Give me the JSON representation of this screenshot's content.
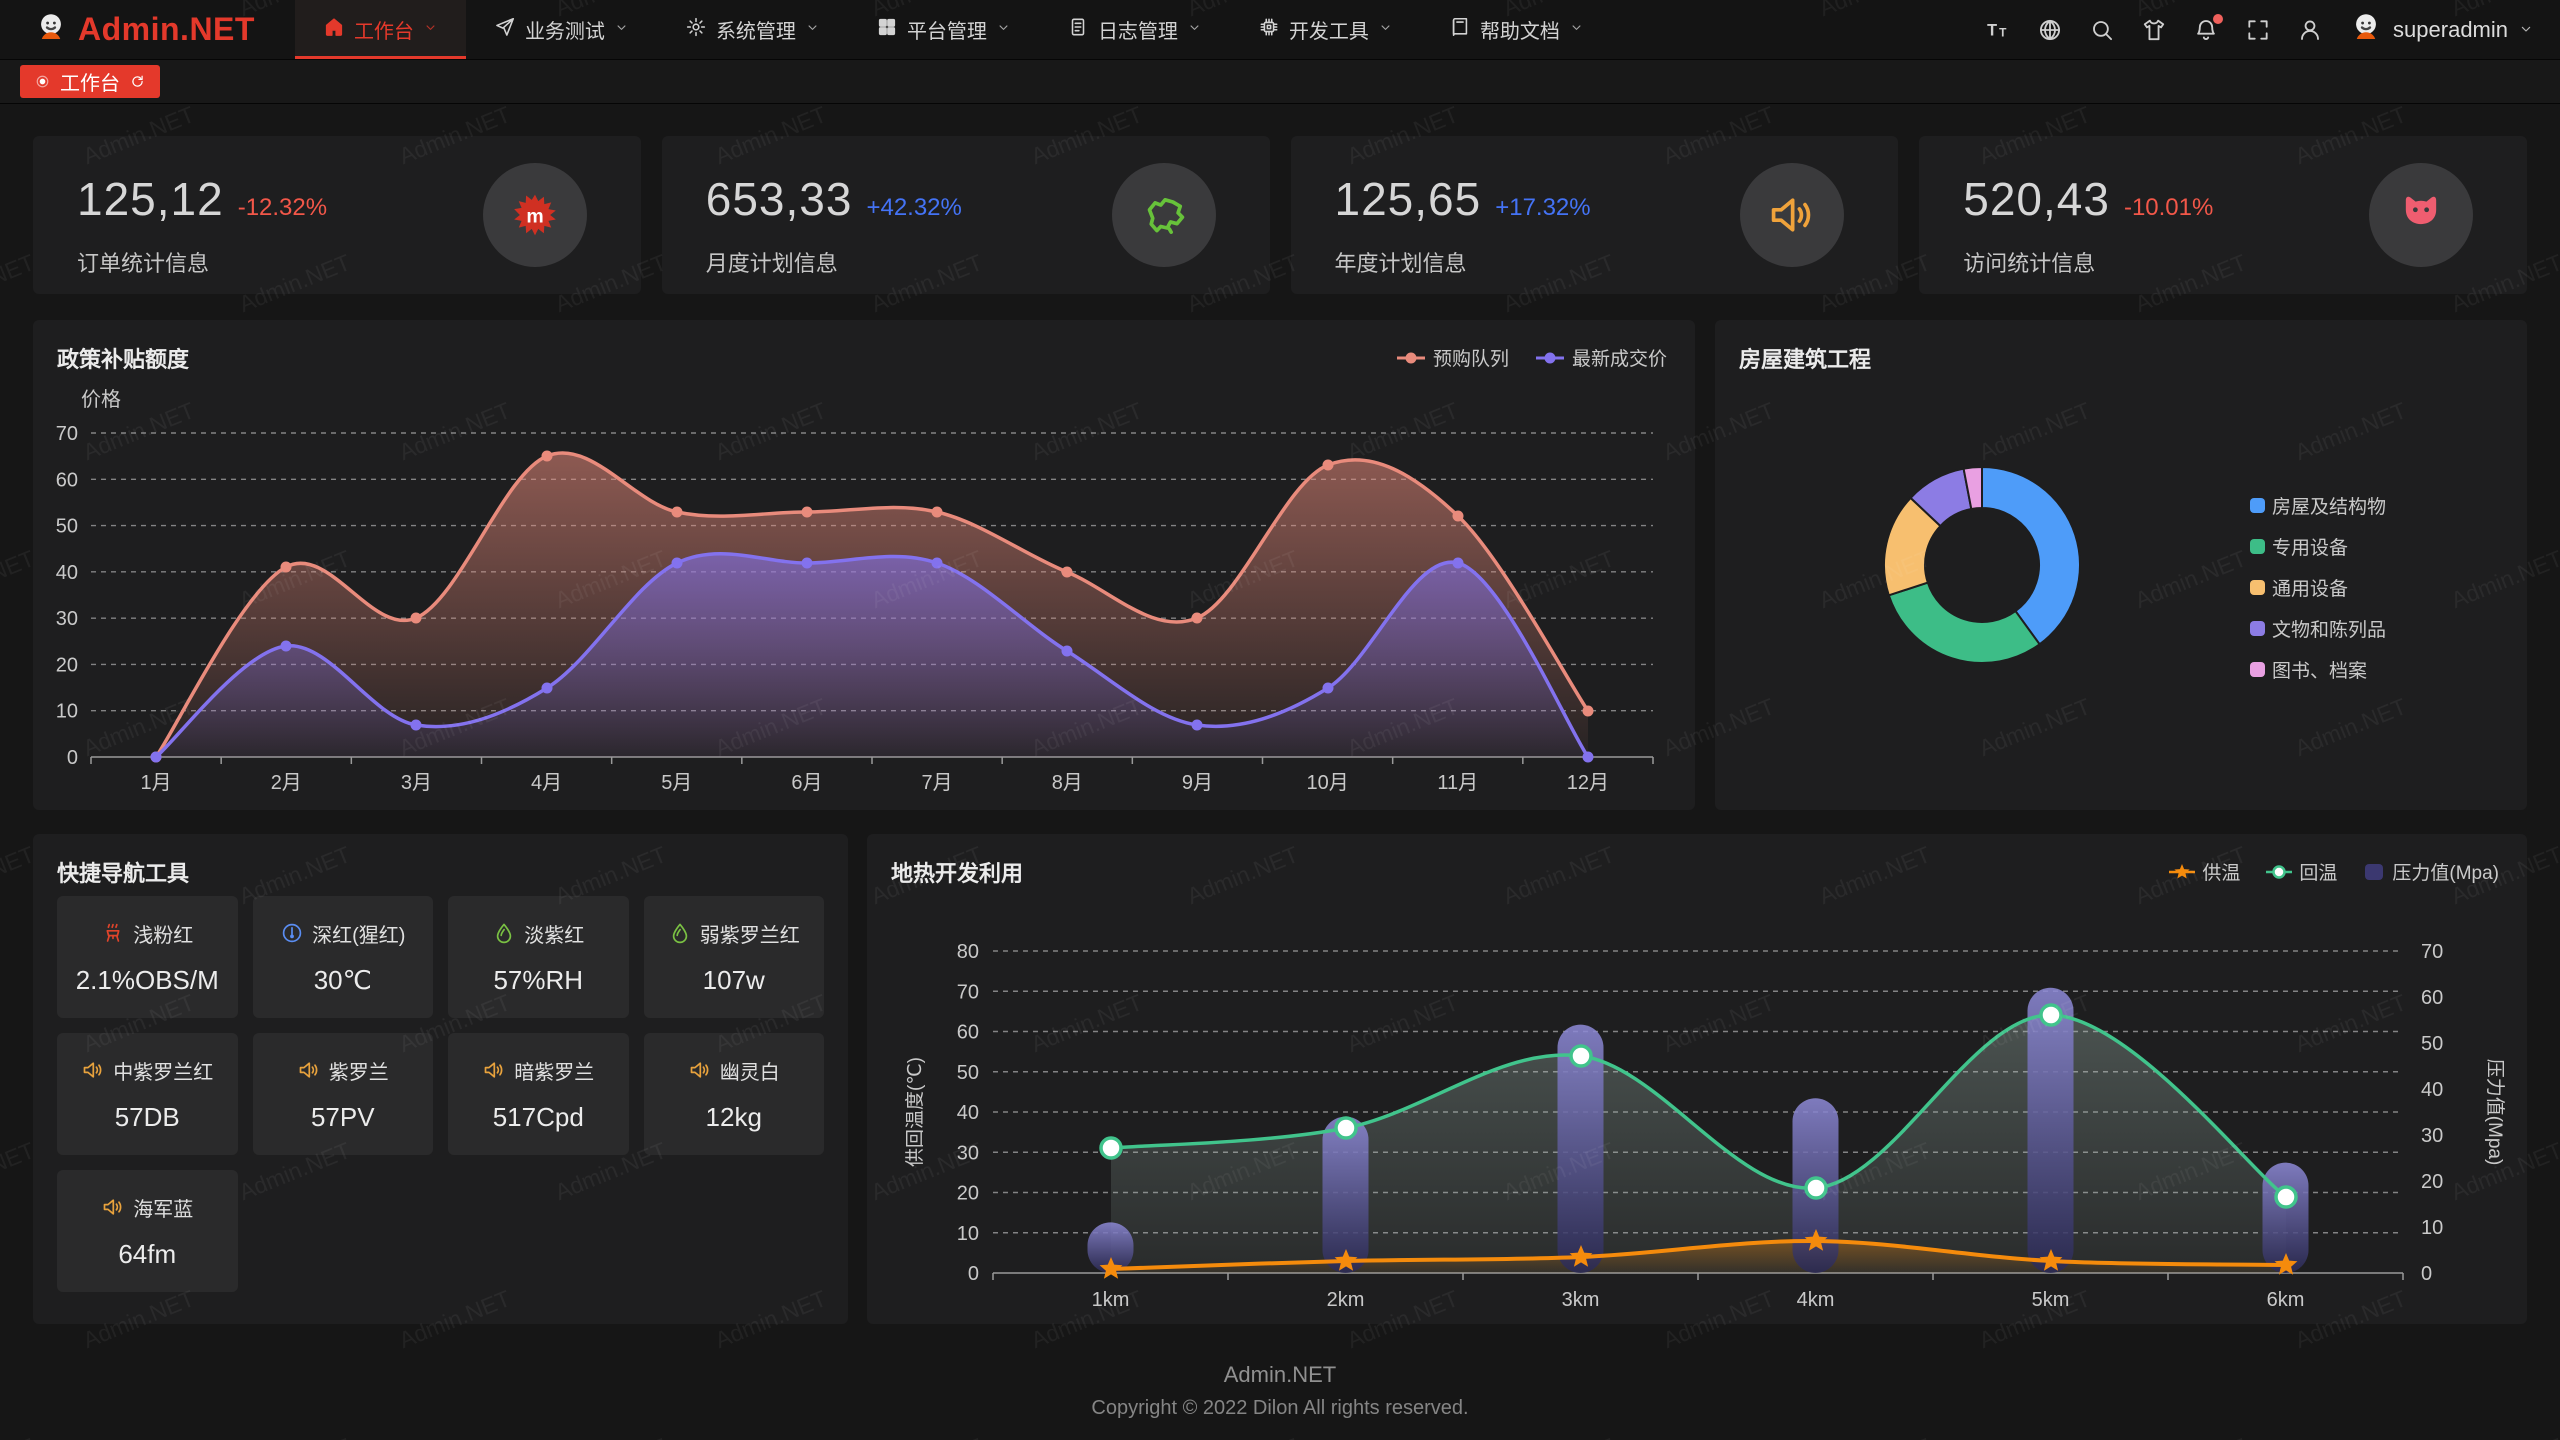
{
  "app": {
    "name": "Admin.NET"
  },
  "colors": {
    "accent": "#e4392b",
    "up": "#4473f5",
    "down": "#f25749",
    "grid_dash": "rgba(255,255,255,0.45)",
    "axis": "#9a9a9a"
  },
  "header": {
    "user": "superadmin",
    "menu": [
      {
        "label": "工作台",
        "icon": "home-icon",
        "active": true
      },
      {
        "label": "业务测试",
        "icon": "send-icon"
      },
      {
        "label": "系统管理",
        "icon": "gear-icon"
      },
      {
        "label": "平台管理",
        "icon": "grid-icon"
      },
      {
        "label": "日志管理",
        "icon": "log-icon"
      },
      {
        "label": "开发工具",
        "icon": "cpu-icon"
      },
      {
        "label": "帮助文档",
        "icon": "book-icon"
      }
    ],
    "tools": [
      "font-size-icon",
      "language-icon",
      "search-icon",
      "theme-icon",
      "bell-icon",
      "fullscreen-icon",
      "profile-icon"
    ]
  },
  "tabbar": {
    "active_tab": "工作台"
  },
  "stats": [
    {
      "value": "125,12",
      "delta": "-12.32%",
      "trend": "down",
      "label": "订单统计信息",
      "icon": "burst-icon",
      "icon_color": "#d03022"
    },
    {
      "value": "653,33",
      "delta": "+42.32%",
      "trend": "up",
      "label": "月度计划信息",
      "icon": "china-map-icon",
      "icon_color": "#67c23a"
    },
    {
      "value": "125,65",
      "delta": "+17.32%",
      "trend": "up",
      "label": "年度计划信息",
      "icon": "speaker-icon",
      "icon_color": "#efa23b"
    },
    {
      "value": "520,43",
      "delta": "-10.01%",
      "trend": "down",
      "label": "访问统计信息",
      "icon": "cat-icon",
      "icon_color": "#ef5d70"
    }
  ],
  "quick_nav": {
    "title": "快捷导航工具",
    "items": [
      {
        "label": "浅粉红",
        "value": "2.1%OBS/M",
        "icon": "brazier-icon",
        "icon_color": "#e0442b"
      },
      {
        "label": "深红(猩红)",
        "value": "30℃",
        "icon": "thermometer-icon",
        "icon_color": "#5a8df2"
      },
      {
        "label": "淡紫红",
        "value": "57%RH",
        "icon": "drop-icon",
        "icon_color": "#7ac143"
      },
      {
        "label": "弱紫罗兰红",
        "value": "107w",
        "icon": "drop-icon",
        "icon_color": "#7ac143"
      },
      {
        "label": "中紫罗兰红",
        "value": "57DB",
        "icon": "speaker-icon",
        "icon_color": "#e8a23d"
      },
      {
        "label": "紫罗兰",
        "value": "57PV",
        "icon": "speaker-icon",
        "icon_color": "#e8a23d"
      },
      {
        "label": "暗紫罗兰",
        "value": "517Cpd",
        "icon": "speaker-icon",
        "icon_color": "#e8a23d"
      },
      {
        "label": "幽灵白",
        "value": "12kg",
        "icon": "speaker-icon",
        "icon_color": "#e8a23d"
      },
      {
        "label": "海军蓝",
        "value": "64fm",
        "icon": "speaker-icon",
        "icon_color": "#e8a23d"
      }
    ]
  },
  "chart_data": [
    {
      "type": "area",
      "title": "政策补贴额度",
      "ylabel": "价格",
      "ylim": [
        0,
        70
      ],
      "grid": "dashed-horizontal",
      "legend_position": "top-right",
      "categories": [
        "1月",
        "2月",
        "3月",
        "4月",
        "5月",
        "6月",
        "7月",
        "8月",
        "9月",
        "10月",
        "11月",
        "12月"
      ],
      "series": [
        {
          "name": "预购队列",
          "color": "#e98b7c",
          "values": [
            0,
            41,
            30,
            65,
            53,
            53,
            53,
            40,
            30,
            63,
            52,
            10
          ]
        },
        {
          "name": "最新成交价",
          "color": "#8372ee",
          "values": [
            0,
            24,
            7,
            15,
            42,
            42,
            42,
            23,
            7,
            15,
            42,
            0
          ]
        }
      ]
    },
    {
      "type": "pie",
      "title": "房屋建筑工程",
      "donut": true,
      "legend_position": "right",
      "labels": [
        "房屋及结构物",
        "专用设备",
        "通用设备",
        "文物和陈列品",
        "图书、档案"
      ],
      "values": [
        40,
        30,
        17,
        10,
        3
      ],
      "colors": [
        "#4e9cf9",
        "#3dbd87",
        "#f7bf6f",
        "#8c7ce4",
        "#e9a0e2"
      ]
    },
    {
      "type": "mixed",
      "title": "地热开发利用",
      "categories": [
        "1km",
        "2km",
        "3km",
        "4km",
        "5km",
        "6km"
      ],
      "ylabel_left": "供回温度(℃)",
      "ylabel_right": "压力值(Mpa)",
      "ylim_left": [
        0,
        80
      ],
      "ylim_right": [
        0,
        70
      ],
      "legend_position": "top-right",
      "series": [
        {
          "name": "供温",
          "type": "line",
          "marker": "star",
          "axis": "left",
          "color": "#f58b0c",
          "values": [
            1,
            3,
            4,
            8,
            3,
            2
          ]
        },
        {
          "name": "回温",
          "type": "line",
          "marker": "circle",
          "axis": "left",
          "color": "#41c48c",
          "values": [
            31,
            36,
            54,
            21,
            64,
            19
          ]
        },
        {
          "name": "压力值(Mpa)",
          "type": "bar",
          "marker": "square",
          "axis": "right",
          "color": "#3b3870",
          "values": [
            11,
            34,
            54,
            38,
            62,
            24
          ]
        }
      ]
    }
  ],
  "footer": {
    "line1": "Admin.NET",
    "line2": "Copyright © 2022 Dilon All rights reserved."
  },
  "watermark": "Admin.NET"
}
